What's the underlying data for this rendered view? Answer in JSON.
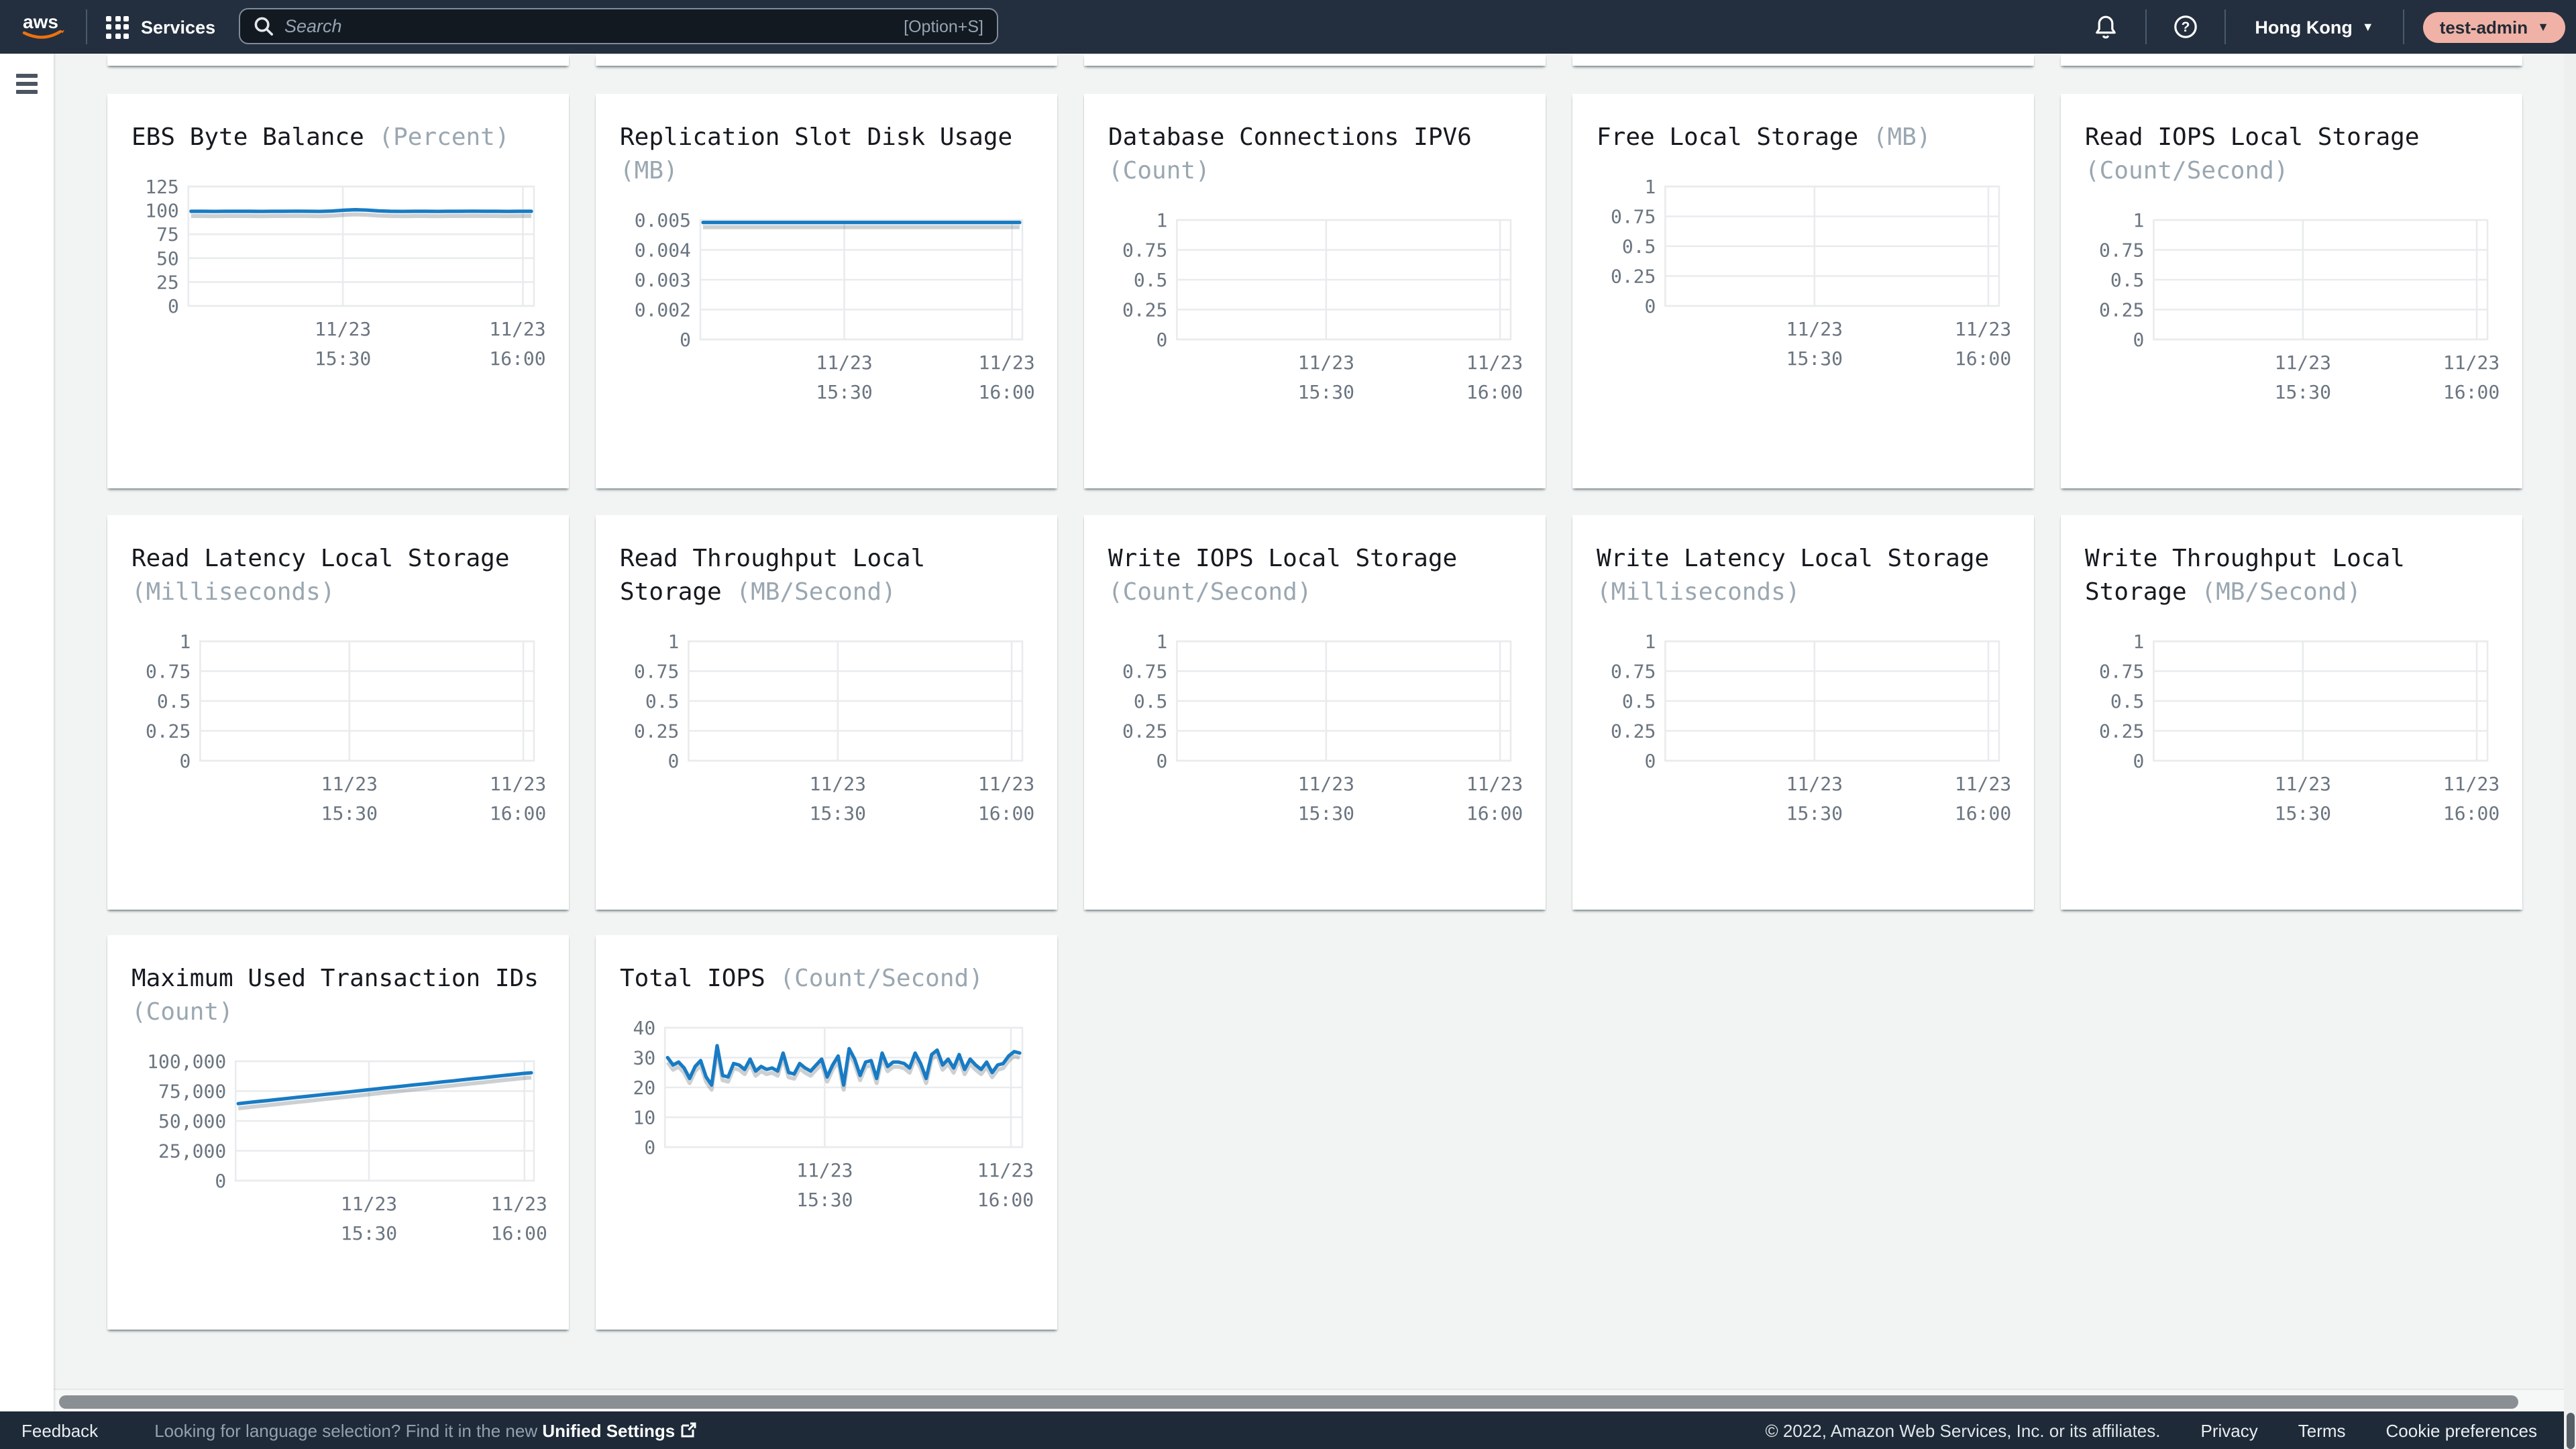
{
  "topnav": {
    "logo": "aws",
    "services_label": "Services",
    "search_placeholder": "Search",
    "search_shortcut": "[Option+S]",
    "region": "Hong Kong",
    "account": "test-admin"
  },
  "footer": {
    "feedback": "Feedback",
    "language_prompt": "Looking for language selection? Find it in the new ",
    "unified_settings": "Unified Settings",
    "copyright": "© 2022, Amazon Web Services, Inc. or its affiliates.",
    "privacy": "Privacy",
    "terms": "Terms",
    "cookie": "Cookie preferences"
  },
  "colors": {
    "accent_blue": "#187bc4",
    "nav_bg": "#232f3e",
    "footer_bg": "#1e2a38",
    "account_badge_bg": "#f0b2a6",
    "grid_line": "#e9ebed",
    "tick_text": "#6b7580"
  },
  "chart_data": [
    {
      "type": "line",
      "title": "EBS Byte Balance",
      "unit": "(Percent)",
      "row": 0,
      "col": 0,
      "ylabel_ticks": [
        "125",
        "100",
        "75",
        "50",
        "25",
        "0"
      ],
      "ylim": [
        0,
        125
      ],
      "x_tick_labels": [
        [
          "11/23",
          "15:30"
        ],
        [
          "11/23",
          "16:00"
        ]
      ],
      "values": [
        99,
        99,
        98.9,
        99,
        99,
        99,
        98.9,
        99,
        99,
        99.1,
        99,
        98.9,
        99.3,
        100.1,
        100.7,
        100.3,
        99.5,
        99,
        98.9,
        99,
        99,
        98.9,
        99,
        99,
        99.1,
        99,
        99,
        98.9,
        99,
        99
      ]
    },
    {
      "type": "line",
      "title": "Replication Slot Disk Usage",
      "unit": "(MB)",
      "row": 0,
      "col": 1,
      "ylabel_ticks": [
        "0.005",
        "0.004",
        "0.003",
        "0.002",
        "0"
      ],
      "ylim": [
        0,
        0.005
      ],
      "x_tick_labels": [
        [
          "11/23",
          "15:30"
        ],
        [
          "11/23",
          "16:00"
        ]
      ],
      "values": [
        0.0049,
        0.0049,
        0.0049,
        0.0049,
        0.0049,
        0.0049,
        0.0049,
        0.0049,
        0.0049,
        0.0049
      ]
    },
    {
      "type": "line",
      "title": "Database Connections IPV6",
      "unit": "(Count)",
      "row": 0,
      "col": 2,
      "ylabel_ticks": [
        "1",
        "0.75",
        "0.5",
        "0.25",
        "0"
      ],
      "ylim": [
        0,
        1
      ],
      "x_tick_labels": [
        [
          "11/23",
          "15:30"
        ],
        [
          "11/23",
          "16:00"
        ]
      ],
      "values": []
    },
    {
      "type": "line",
      "title": "Free Local Storage",
      "unit": "(MB)",
      "row": 0,
      "col": 3,
      "ylabel_ticks": [
        "1",
        "0.75",
        "0.5",
        "0.25",
        "0"
      ],
      "ylim": [
        0,
        1
      ],
      "x_tick_labels": [
        [
          "11/23",
          "15:30"
        ],
        [
          "11/23",
          "16:00"
        ]
      ],
      "values": []
    },
    {
      "type": "line",
      "title": "Read IOPS Local Storage",
      "unit": "(Count/Second)",
      "row": 0,
      "col": 4,
      "ylabel_ticks": [
        "1",
        "0.75",
        "0.5",
        "0.25",
        "0"
      ],
      "ylim": [
        0,
        1
      ],
      "x_tick_labels": [
        [
          "11/23",
          "15:30"
        ],
        [
          "11/23",
          "16:00"
        ]
      ],
      "values": []
    },
    {
      "type": "line",
      "title": "Read Latency Local Storage",
      "unit": "(Milliseconds)",
      "row": 1,
      "col": 0,
      "ylabel_ticks": [
        "1",
        "0.75",
        "0.5",
        "0.25",
        "0"
      ],
      "ylim": [
        0,
        1
      ],
      "x_tick_labels": [
        [
          "11/23",
          "15:30"
        ],
        [
          "11/23",
          "16:00"
        ]
      ],
      "values": []
    },
    {
      "type": "line",
      "title": "Read Throughput Local Storage",
      "unit": "(MB/Second)",
      "row": 1,
      "col": 1,
      "ylabel_ticks": [
        "1",
        "0.75",
        "0.5",
        "0.25",
        "0"
      ],
      "ylim": [
        0,
        1
      ],
      "x_tick_labels": [
        [
          "11/23",
          "15:30"
        ],
        [
          "11/23",
          "16:00"
        ]
      ],
      "values": []
    },
    {
      "type": "line",
      "title": "Write IOPS Local Storage",
      "unit": "(Count/Second)",
      "row": 1,
      "col": 2,
      "ylabel_ticks": [
        "1",
        "0.75",
        "0.5",
        "0.25",
        "0"
      ],
      "ylim": [
        0,
        1
      ],
      "x_tick_labels": [
        [
          "11/23",
          "15:30"
        ],
        [
          "11/23",
          "16:00"
        ]
      ],
      "values": []
    },
    {
      "type": "line",
      "title": "Write Latency Local Storage",
      "unit": "(Milliseconds)",
      "row": 1,
      "col": 3,
      "ylabel_ticks": [
        "1",
        "0.75",
        "0.5",
        "0.25",
        "0"
      ],
      "ylim": [
        0,
        1
      ],
      "x_tick_labels": [
        [
          "11/23",
          "15:30"
        ],
        [
          "11/23",
          "16:00"
        ]
      ],
      "values": []
    },
    {
      "type": "line",
      "title": "Write Throughput Local Storage",
      "unit": "(MB/Second)",
      "row": 1,
      "col": 4,
      "ylabel_ticks": [
        "1",
        "0.75",
        "0.5",
        "0.25",
        "0"
      ],
      "ylim": [
        0,
        1
      ],
      "x_tick_labels": [
        [
          "11/23",
          "15:30"
        ],
        [
          "11/23",
          "16:00"
        ]
      ],
      "values": []
    },
    {
      "type": "line",
      "title": "Maximum Used Transaction IDs",
      "unit": "(Count)",
      "row": 2,
      "col": 0,
      "ylabel_ticks": [
        "100,000",
        "75,000",
        "50,000",
        "25,000",
        "0"
      ],
      "ylim": [
        0,
        100000
      ],
      "x_tick_labels": [
        [
          "11/23",
          "15:30"
        ],
        [
          "11/23",
          "16:00"
        ]
      ],
      "values": [
        64500,
        65400,
        66300,
        67100,
        68000,
        68900,
        69800,
        70600,
        71500,
        72400,
        73200,
        74100,
        75000,
        75800,
        76700,
        77600,
        78400,
        79300,
        80200,
        81000,
        81900,
        82800,
        83600,
        84500,
        85400,
        86200,
        87100,
        88000,
        88800,
        89700,
        90300
      ]
    },
    {
      "type": "line",
      "title": "Total IOPS",
      "unit": "(Count/Second)",
      "row": 2,
      "col": 1,
      "ylabel_ticks": [
        "40",
        "30",
        "20",
        "10",
        "0"
      ],
      "ylim": [
        0,
        40
      ],
      "x_tick_labels": [
        [
          "11/23",
          "15:30"
        ],
        [
          "11/23",
          "16:00"
        ]
      ],
      "values": [
        30,
        27.5,
        28.5,
        26.5,
        23,
        27,
        29,
        23.5,
        20.8,
        34,
        24,
        23.5,
        28,
        27.5,
        26,
        29.5,
        25.5,
        27,
        26,
        26.5,
        25.5,
        31.5,
        25,
        24.5,
        28,
        26.5,
        25.5,
        27.5,
        29.5,
        23.5,
        27.5,
        30.5,
        20.8,
        33,
        29.5,
        24,
        28.5,
        29,
        23,
        31.5,
        27,
        28.5,
        28.5,
        28,
        26.5,
        31.5,
        28,
        23,
        31,
        32.5,
        27.5,
        29.5,
        26.5,
        31,
        26,
        29.5,
        27.5,
        26,
        28.5,
        25,
        27.5,
        28,
        30.5,
        32,
        31.5
      ]
    }
  ]
}
